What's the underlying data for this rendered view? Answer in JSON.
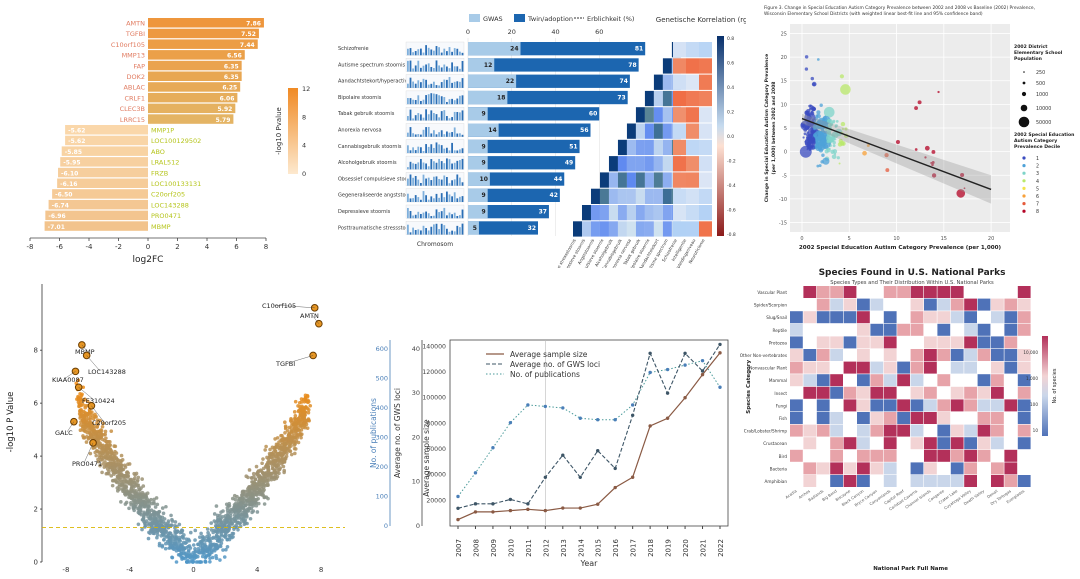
{
  "panel_bar": {
    "type": "bar",
    "xlabel": "log2FC",
    "xticks": [
      "-8",
      "-6",
      "-4",
      "-2",
      "0",
      "2",
      "4",
      "6",
      "8"
    ],
    "colorbar_title": "-log10 Pvalue",
    "colorbar_ticks": [
      "12",
      "8",
      "4",
      "0"
    ],
    "up_genes": [
      {
        "name": "AMTN",
        "value": 7.86
      },
      {
        "name": "TGFBI",
        "value": 7.52
      },
      {
        "name": "C10orf105",
        "value": 7.44
      },
      {
        "name": "MMP13",
        "value": 6.56
      },
      {
        "name": "FAP",
        "value": 6.35
      },
      {
        "name": "DOK2",
        "value": 6.35
      },
      {
        "name": "ABLAC",
        "value": 6.25
      },
      {
        "name": "CRLF1",
        "value": 6.06
      },
      {
        "name": "CLEC3B",
        "value": 5.92
      },
      {
        "name": "LRRC15",
        "value": 5.79
      }
    ],
    "down_genes": [
      {
        "name": "MMP1P",
        "value": -5.62
      },
      {
        "name": "LOC100129502",
        "value": -5.62
      },
      {
        "name": "ABO",
        "value": -5.85
      },
      {
        "name": "LRAL512",
        "value": -5.95
      },
      {
        "name": "FRZB",
        "value": -6.1
      },
      {
        "name": "LOC100133131",
        "value": -6.16
      },
      {
        "name": "C20orf205",
        "value": -6.5
      },
      {
        "name": "LOC143288",
        "value": -6.74
      },
      {
        "name": "PRO0471",
        "value": -6.96
      },
      {
        "name": "MBMP",
        "value": -7.01
      }
    ]
  },
  "panel_gwas": {
    "legend": [
      "GWAS",
      "Twin/adoption",
      "Erblichkeit (%)"
    ],
    "right_title": "Genetische Korrelation (rg)",
    "x_axis_label": "Chromosom",
    "x_ticks": [
      "0",
      "20",
      "40",
      "60"
    ],
    "colorbar_ticks": [
      "0.8",
      "0.6",
      "0.4",
      "0.2",
      "0.0",
      "-0.2",
      "-0.4",
      "-0.6",
      "-0.8"
    ],
    "disorders": [
      {
        "name": "Schizofrenie",
        "gwas": 24,
        "twin": 81
      },
      {
        "name": "Autisme spectrum stoornis",
        "gwas": 12,
        "twin": 78
      },
      {
        "name": "Aandachtstekort/hyperactiviteit stoornis",
        "gwas": 22,
        "twin": 74
      },
      {
        "name": "Bipolaire stoornis",
        "gwas": 18,
        "twin": 73
      },
      {
        "name": "Tabak gebruik stoornis",
        "gwas": 9,
        "twin": 60
      },
      {
        "name": "Anorexia nervosa",
        "gwas": 14,
        "twin": 56
      },
      {
        "name": "Cannabisgebruik stoornis",
        "gwas": 9,
        "twin": 51
      },
      {
        "name": "Alcoholgebruik stoornis",
        "gwas": 9,
        "twin": 49
      },
      {
        "name": "Obsessief compulsieve stoornis",
        "gwas": 10,
        "twin": 44
      },
      {
        "name": "Gegeneraliseerde angststoornis",
        "gwas": 9,
        "twin": 42
      },
      {
        "name": "Depressieve stoornis",
        "gwas": 9,
        "twin": 37
      },
      {
        "name": "Posttraumatische stressstoornis",
        "gwas": 5,
        "twin": 32
      }
    ],
    "pheno_labels": [
      "Posttraumatische stressstoornis",
      "Depressieve stoornis",
      "Angststoornis",
      "Obsessief compulsieve stoornis",
      "Alcoholgebruik",
      "Cannabisgebruik",
      "Anorexia nervosa",
      "Tabak gebruik",
      "Bipolaire stoornis",
      "Aandachtstekort",
      "Autisme spectrum",
      "Schizofrenie",
      "Intelligentie",
      "Opleidingsniveau",
      "Neuroticisme"
    ]
  },
  "panel_scatter": {
    "title": "Figure 3. Change in Special Education Autism Category Prevalence between 2002 and 2008 vs Baseline (2002) Prevalence, Wisconsin Elementary School Districts (with weighted linear best-fit line and 95% confidence band)",
    "xlabel": "2002 Special Education Autism Category Prevalence (per 1,000)",
    "ylabel": "Change in Special Education Autism Category Prevalence (per 1,000) between 2002 and 2008",
    "xticks": [
      "0",
      "5",
      "10",
      "15",
      "20"
    ],
    "yticks": [
      "-15",
      "-10",
      "-5",
      "0",
      "5",
      "10",
      "15",
      "20",
      "25"
    ],
    "legend1_title": "2002 District Elementary School Population",
    "legend1_items": [
      "250",
      "500",
      "1000",
      "10000",
      "50000"
    ],
    "legend2_title": "2002 Special Education Autism Category Prevalence Decile",
    "legend2_items": [
      "1",
      "2",
      "3",
      "4",
      "5",
      "6",
      "7",
      "8"
    ],
    "legend2_colors": [
      "#3b4cc0",
      "#4ea2d8",
      "#7fd4c9",
      "#b9e86b",
      "#f3e34b",
      "#f8a13a",
      "#e55b3c",
      "#b40426"
    ]
  },
  "panel_volcano": {
    "xlabel": "log2FC",
    "ylabel": "-log10 P Value",
    "xticks": [
      "-8",
      "-4",
      "0",
      "4",
      "8"
    ],
    "yticks": [
      "0",
      "2",
      "4",
      "6",
      "8"
    ],
    "labels": [
      "C10orf105",
      "AMTN",
      "TGFBI",
      "MBMP",
      "LOC143288",
      "KIAA0087",
      "FE310424",
      "C20orf205",
      "GALC",
      "PRO0471"
    ]
  },
  "panel_gwas_growth": {
    "type": "line",
    "xlabel": "Year",
    "ylabel_left1": "No. of publications",
    "ylabel_left2": "Average no. of GWS loci",
    "ylabel_left3": "Average sample size",
    "legend": [
      "Average sample size",
      "Average no. of GWS loci",
      "No. of publications"
    ],
    "years": [
      "2007",
      "2008",
      "2009",
      "2010",
      "2011",
      "2012",
      "2013",
      "2014",
      "2015",
      "2016",
      "2017",
      "2018",
      "2019",
      "2020",
      "2021",
      "2022"
    ],
    "pub_ticks": [
      "0",
      "100",
      "200",
      "300",
      "400",
      "500",
      "600"
    ],
    "loci_ticks": [
      "0",
      "10",
      "20",
      "30",
      "40"
    ],
    "size_ticks": [
      "20000",
      "40000",
      "60000",
      "80000",
      "100000",
      "120000",
      "140000"
    ],
    "sample_size": [
      5000,
      11000,
      11000,
      12000,
      13000,
      12000,
      14000,
      14000,
      17000,
      30000,
      38000,
      78000,
      84000,
      100000,
      118000,
      135000
    ],
    "gws_loci": [
      4,
      5,
      5,
      6,
      5,
      11,
      16,
      11,
      17,
      13,
      25,
      39,
      30,
      39,
      35,
      41
    ],
    "publications": [
      100,
      180,
      265,
      350,
      410,
      405,
      400,
      365,
      360,
      360,
      410,
      520,
      530,
      545,
      560,
      470
    ]
  },
  "panel_heatmap": {
    "title": "Species Found in U.S. National Parks",
    "subtitle": "Species Types and Their Distribution Within U.S. National Parks",
    "xlabel": "National Park Full Name",
    "ylabel": "Species Category",
    "legend_title": "No. of species",
    "legend_ticks": [
      "10,000",
      "1,000",
      "100",
      "10"
    ],
    "categories": [
      "Vascular Plant",
      "Spider/Scorpion",
      "Slug/Snail",
      "Reptile",
      "Protozoa",
      "Other Non-vertebrates",
      "Nonvascular Plant",
      "Mammal",
      "Insect",
      "Fungi",
      "Fish",
      "Crab/Lobster/Shrimp",
      "Crustacean",
      "Bird",
      "Bacteria",
      "Amphibian"
    ],
    "parks": [
      "Acadia",
      "Arches",
      "Badlands",
      "Big Bend",
      "Biscayne",
      "Black Canyon",
      "Bryce Canyon",
      "Canyonlands",
      "Capitol Reef",
      "Carlsbad Caverns",
      "Channel Islands",
      "Congaree",
      "Crater Lake",
      "Cuyahoga Valley",
      "Death Valley",
      "Denali",
      "Dry Tortugas",
      "Everglades"
    ]
  }
}
